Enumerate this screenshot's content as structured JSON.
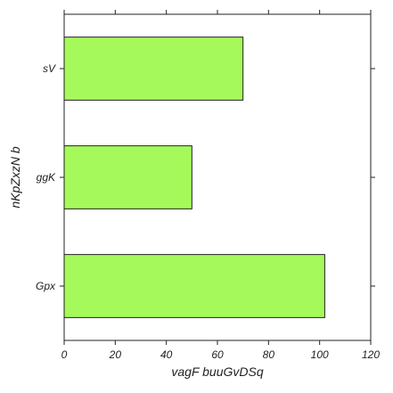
{
  "chart_data": {
    "type": "bar",
    "orientation": "horizontal",
    "categories": [
      "sV",
      "ggK",
      "Gpx"
    ],
    "values": [
      70,
      50,
      102
    ],
    "xlabel": "vagF buuGvDSq",
    "ylabel": "nKpZxzN b",
    "xlim": [
      0,
      120
    ],
    "xticks": [
      "0",
      "20",
      "40",
      "60",
      "80",
      "100",
      "120"
    ],
    "grid": false,
    "bar_color": "#a6f95a",
    "edge_color": "#222222"
  }
}
